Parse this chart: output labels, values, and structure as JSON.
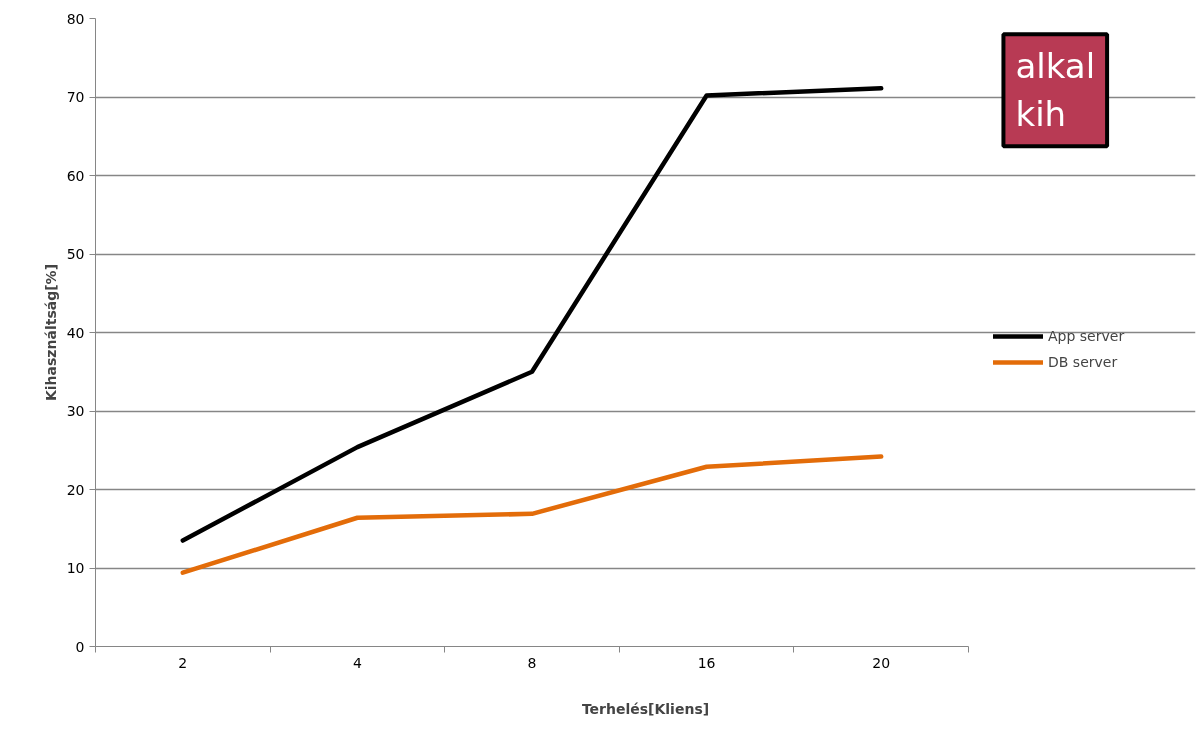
{
  "chart_data": {
    "type": "line",
    "xlabel": "Terhelés[Kliens]",
    "ylabel": "Kihasználtság[%]",
    "categories": [
      "2",
      "4",
      "8",
      "16",
      "20"
    ],
    "series": [
      {
        "name": "App server",
        "color": "#000000",
        "values": [
          13.5,
          25.4,
          35,
          70.2,
          71.1
        ]
      },
      {
        "name": "DB server",
        "color": "#e36c09",
        "values": [
          9.4,
          16.4,
          16.9,
          22.9,
          24.2
        ]
      }
    ],
    "ylim": [
      0,
      80
    ],
    "yticks": [
      0,
      10,
      20,
      30,
      40,
      50,
      60,
      70,
      80
    ],
    "grid": "y",
    "legend": "right",
    "marker": "none",
    "line_style": "solid",
    "annotations": [
      "alkal\nkih"
    ]
  }
}
